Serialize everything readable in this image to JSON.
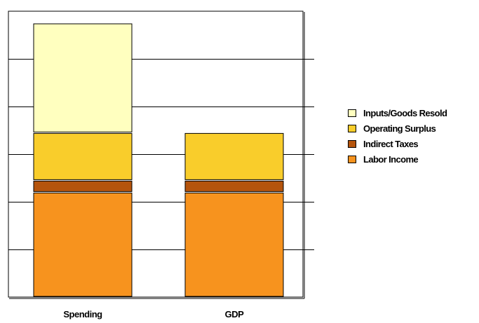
{
  "chart_data": {
    "type": "bar",
    "stacked": true,
    "categories": [
      "Spending",
      "GDP"
    ],
    "series": [
      {
        "name": "Labor Income",
        "color": "#f7931e",
        "values": [
          44,
          44
        ]
      },
      {
        "name": "Indirect Taxes",
        "color": "#b5540c",
        "values": [
          5,
          5
        ]
      },
      {
        "name": "Operating Surplus",
        "color": "#f9cd2b",
        "values": [
          20,
          20
        ]
      },
      {
        "name": "Inputs/Goods Resold",
        "color": "#ffffbf",
        "values": [
          46,
          0
        ]
      }
    ],
    "ylim": [
      0,
      120
    ],
    "grid": true,
    "legend": "right",
    "title": "",
    "xlabel": "",
    "ylabel": ""
  }
}
